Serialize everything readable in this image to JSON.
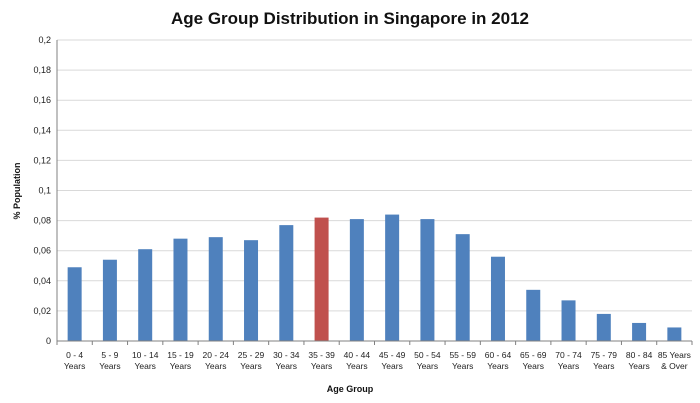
{
  "chart_data": {
    "type": "bar",
    "title": "Age Group Distribution in Singapore in 2012",
    "xlabel": "Age Group",
    "ylabel": "% Population",
    "ylim": [
      0,
      0.2
    ],
    "yticks": [
      "0",
      "0,02",
      "0,04",
      "0,06",
      "0,08",
      "0,1",
      "0,12",
      "0,14",
      "0,16",
      "0,18",
      "0,2"
    ],
    "grid": true,
    "legend": "none",
    "categories": [
      [
        "0 -  4",
        "Years"
      ],
      [
        "5 -  9",
        "Years"
      ],
      [
        "10 - 14",
        "Years"
      ],
      [
        "15 - 19",
        "Years"
      ],
      [
        "20 - 24",
        "Years"
      ],
      [
        "25 - 29",
        "Years"
      ],
      [
        "30 - 34",
        "Years"
      ],
      [
        "35 - 39",
        "Years"
      ],
      [
        "40 - 44",
        "Years"
      ],
      [
        "45 - 49",
        "Years"
      ],
      [
        "50 - 54",
        "Years"
      ],
      [
        "55 - 59",
        "Years"
      ],
      [
        "60 - 64",
        "Years"
      ],
      [
        "65 - 69",
        "Years"
      ],
      [
        "70 - 74",
        "Years"
      ],
      [
        "75 - 79",
        "Years"
      ],
      [
        "80 - 84",
        "Years"
      ],
      [
        "85 Years",
        "& Over"
      ]
    ],
    "values": [
      0.049,
      0.054,
      0.061,
      0.068,
      0.069,
      0.067,
      0.077,
      0.082,
      0.081,
      0.084,
      0.081,
      0.071,
      0.056,
      0.034,
      0.027,
      0.018,
      0.012,
      0.009
    ],
    "bar_color": "#4f81bd",
    "highlight_color": "#c0504d",
    "highlight_index": 7
  }
}
